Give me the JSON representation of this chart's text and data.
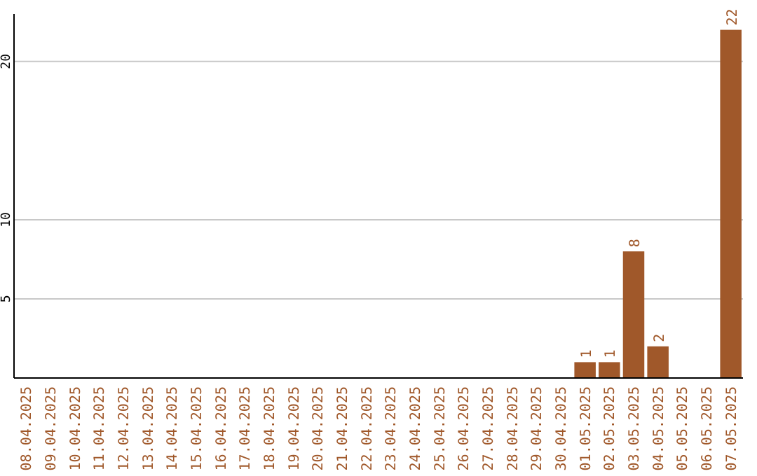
{
  "chart_data": {
    "type": "bar",
    "categories": [
      "08.04.2025",
      "09.04.2025",
      "10.04.2025",
      "11.04.2025",
      "12.04.2025",
      "13.04.2025",
      "14.04.2025",
      "15.04.2025",
      "16.04.2025",
      "17.04.2025",
      "18.04.2025",
      "19.04.2025",
      "20.04.2025",
      "21.04.2025",
      "22.04.2025",
      "23.04.2025",
      "24.04.2025",
      "25.04.2025",
      "26.04.2025",
      "27.04.2025",
      "28.04.2025",
      "29.04.2025",
      "30.04.2025",
      "01.05.2025",
      "02.05.2025",
      "03.05.2025",
      "04.05.2025",
      "05.05.2025",
      "06.05.2025",
      "07.05.2025"
    ],
    "values": [
      0,
      0,
      0,
      0,
      0,
      0,
      0,
      0,
      0,
      0,
      0,
      0,
      0,
      0,
      0,
      0,
      0,
      0,
      0,
      0,
      0,
      0,
      0,
      1,
      1,
      8,
      2,
      0,
      0,
      22
    ],
    "value_labels": [
      null,
      null,
      null,
      null,
      null,
      null,
      null,
      null,
      null,
      null,
      null,
      null,
      null,
      null,
      null,
      null,
      null,
      null,
      null,
      null,
      null,
      null,
      null,
      "1",
      "1",
      "8",
      "2",
      null,
      null,
      "22"
    ],
    "color": "#a0582a",
    "ylim": [
      0,
      23
    ],
    "yticks": [
      5,
      10,
      20
    ],
    "grid": "y"
  }
}
